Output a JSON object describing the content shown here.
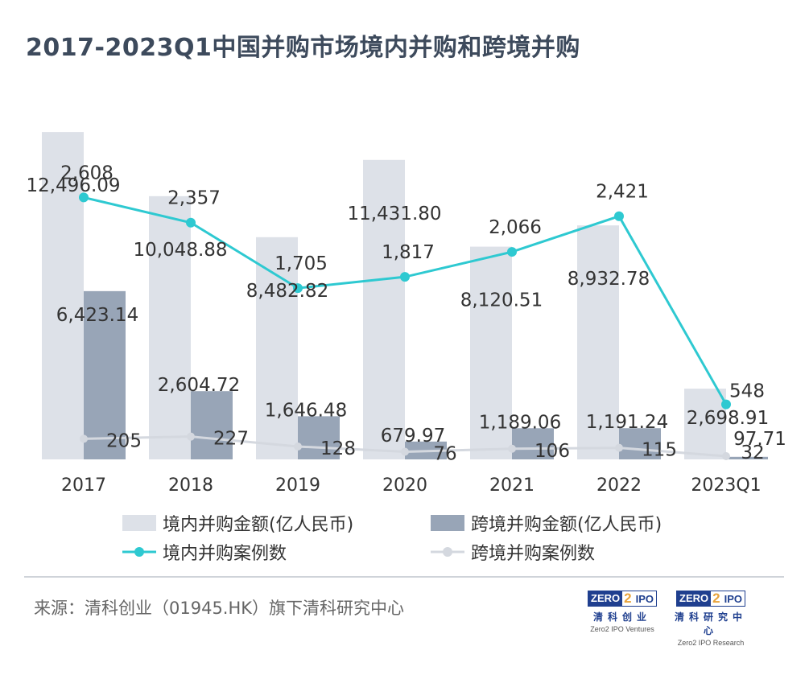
{
  "title": "2017-2023Q1中国并购市场境内并购和跨境并购",
  "source": "来源：清科创业（01945.HK）旗下清科研究中心",
  "logos": [
    {
      "word_left": "ZERO",
      "word_mid": "2",
      "word_right": "IPO",
      "cn": "清科创业",
      "en": "Zero2 IPO Ventures"
    },
    {
      "word_left": "ZERO",
      "word_mid": "2",
      "word_right": "IPO",
      "cn": "清科研究中心",
      "en": "Zero2 IPO Research"
    }
  ],
  "colors": {
    "domestic_amount": "#dde1e8",
    "cross_amount": "#98a5b7",
    "domestic_count": "#2ec9d1",
    "cross_count": "#d4d8df",
    "title": "#3d4a5c"
  },
  "chart_data": {
    "type": "bar",
    "categories": [
      "2017",
      "2018",
      "2019",
      "2020",
      "2021",
      "2022",
      "2023Q1"
    ],
    "series": [
      {
        "name": "境内并购金额(亿人民币)",
        "kind": "bar",
        "axis": "amount",
        "values": [
          12496.09,
          10048.88,
          8482.82,
          11431.8,
          8120.51,
          8932.78,
          2698.91
        ],
        "labels": [
          "12,496.09",
          "10,048.88",
          "8,482.82",
          "11,431.80",
          "8,120.51",
          "8,932.78",
          "2,698.91"
        ]
      },
      {
        "name": "跨境并购金额(亿人民币)",
        "kind": "bar",
        "axis": "amount",
        "values": [
          6423.14,
          2604.72,
          1646.48,
          679.97,
          1189.06,
          1191.24,
          97.71
        ],
        "labels": [
          "6,423.14",
          "2,604.72",
          "1,646.48",
          "679.97",
          "1,189.06",
          "1,191.24",
          "97.71"
        ]
      },
      {
        "name": "境内并购案例数",
        "kind": "line",
        "axis": "count",
        "values": [
          2608,
          2357,
          1705,
          1817,
          2066,
          2421,
          548
        ],
        "labels": [
          "2,608",
          "2,357",
          "1,705",
          "1,817",
          "2,066",
          "2,421",
          "548"
        ]
      },
      {
        "name": "跨境并购案例数",
        "kind": "line",
        "axis": "count",
        "values": [
          205,
          227,
          128,
          76,
          106,
          115,
          32
        ],
        "labels": [
          "205",
          "227",
          "128",
          "76",
          "106",
          "115",
          "32"
        ]
      }
    ],
    "amount_axis_range": [
      0,
      12500
    ],
    "count_axis_range": [
      0,
      3260
    ],
    "legend": "bottom",
    "grid": false
  }
}
